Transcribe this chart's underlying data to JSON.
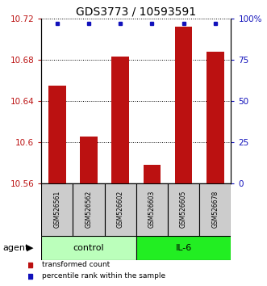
{
  "title": "GDS3773 / 10593591",
  "samples": [
    "GSM526561",
    "GSM526562",
    "GSM526602",
    "GSM526603",
    "GSM526605",
    "GSM526678"
  ],
  "bar_values": [
    10.655,
    10.605,
    10.683,
    10.578,
    10.712,
    10.688
  ],
  "percentile_values": [
    97,
    97,
    97,
    97,
    97,
    97
  ],
  "ylim_left": [
    10.56,
    10.72
  ],
  "ylim_right": [
    0,
    100
  ],
  "yticks_left": [
    10.56,
    10.6,
    10.64,
    10.68,
    10.72
  ],
  "yticks_right": [
    0,
    25,
    50,
    75,
    100
  ],
  "ytick_labels_left": [
    "10.56",
    "10.6",
    "10.64",
    "10.68",
    "10.72"
  ],
  "ytick_labels_right": [
    "0",
    "25",
    "50",
    "75",
    "100%"
  ],
  "bar_color": "#bb1111",
  "percentile_color": "#1111bb",
  "bar_width": 0.55,
  "groups": [
    {
      "label": "control",
      "indices": [
        0,
        1,
        2
      ],
      "color": "#bbffbb"
    },
    {
      "label": "IL-6",
      "indices": [
        3,
        4,
        5
      ],
      "color": "#22ee22"
    }
  ],
  "agent_label": "agent",
  "legend_items": [
    {
      "label": "transformed count",
      "color": "#bb1111"
    },
    {
      "label": "percentile rank within the sample",
      "color": "#1111bb"
    }
  ],
  "background_color": "#ffffff",
  "title_fontsize": 10,
  "tick_fontsize": 7.5,
  "sample_fontsize": 5.5,
  "group_fontsize": 8,
  "legend_fontsize": 6.5,
  "agent_fontsize": 8
}
